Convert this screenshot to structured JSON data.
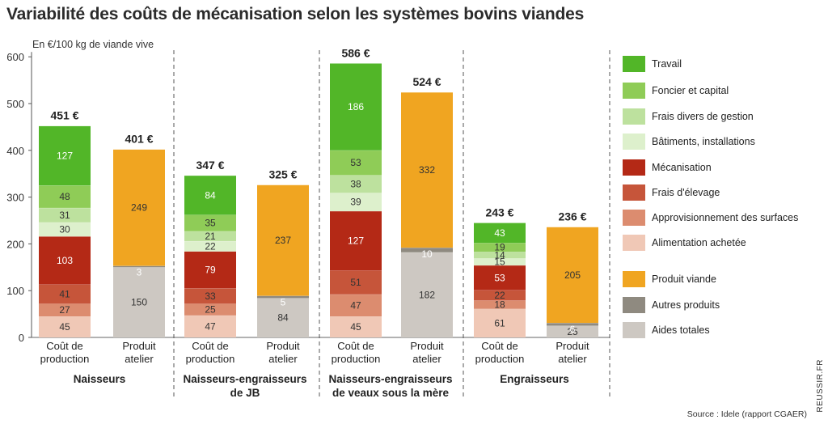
{
  "title": "Variabilité des coûts de mécanisation selon les systèmes bovins viandes",
  "unit_label": "En €/100 kg de viande vive",
  "source": "Source : Idele (rapport CGAER)",
  "site": "REUSSIR.FR",
  "colors": {
    "Travail": "#52b628",
    "Foncier et capital": "#8fcc57",
    "Frais divers de gestion": "#bde19e",
    "Bâtiments, installations": "#ddf0cc",
    "Mécanisation": "#b42916",
    "Frais d'élevage": "#c6553a",
    "Approvisionnement des surfaces": "#dc8c6f",
    "Alimentation achetée": "#f0c8b6",
    "Produit viande": "#f0a521",
    "Autres produits": "#8f8a80",
    "Aides totales": "#cdc8c2"
  },
  "chart_data": {
    "type": "bar",
    "stacked": true,
    "ylabel": "En €/100 kg de viande vive",
    "ylim": [
      0,
      600
    ],
    "yticks": [
      0,
      100,
      200,
      300,
      400,
      500,
      600
    ],
    "grid": false,
    "legend_position": "right",
    "legend": [
      "Travail",
      "Foncier et capital",
      "Frais divers de gestion",
      "Bâtiments, installations",
      "Mécanisation",
      "Frais d'élevage",
      "Approvisionnement des surfaces",
      "Alimentation achetée",
      "Produit viande",
      "Autres produits",
      "Aides totales"
    ],
    "groups": [
      {
        "name": "Naisseurs",
        "bars": [
          {
            "label": "Coût de production",
            "total": "451 €",
            "segments": [
              {
                "series": "Alimentation achetée",
                "value": 45
              },
              {
                "series": "Approvisionnement des surfaces",
                "value": 27
              },
              {
                "series": "Frais d'élevage",
                "value": 41
              },
              {
                "series": "Mécanisation",
                "value": 103
              },
              {
                "series": "Bâtiments, installations",
                "value": 30
              },
              {
                "series": "Frais divers de gestion",
                "value": 31
              },
              {
                "series": "Foncier et capital",
                "value": 48
              },
              {
                "series": "Travail",
                "value": 127
              }
            ]
          },
          {
            "label": "Produit atelier",
            "total": "401 €",
            "segments": [
              {
                "series": "Aides totales",
                "value": 150
              },
              {
                "series": "Autres produits",
                "value": 3
              },
              {
                "series": "Produit viande",
                "value": 249
              }
            ]
          }
        ]
      },
      {
        "name": "Naisseurs-engraisseurs de JB",
        "bars": [
          {
            "label": "Coût de production",
            "total": "347 €",
            "segments": [
              {
                "series": "Alimentation achetée",
                "value": 47
              },
              {
                "series": "Approvisionnement des surfaces",
                "value": 25
              },
              {
                "series": "Frais d'élevage",
                "value": 33
              },
              {
                "series": "Mécanisation",
                "value": 79
              },
              {
                "series": "Bâtiments, installations",
                "value": 22
              },
              {
                "series": "Frais divers de gestion",
                "value": 21
              },
              {
                "series": "Foncier et capital",
                "value": 35
              },
              {
                "series": "Travail",
                "value": 84
              }
            ]
          },
          {
            "label": "Produit atelier",
            "total": "325 €",
            "segments": [
              {
                "series": "Aides totales",
                "value": 84
              },
              {
                "series": "Autres produits",
                "value": 5
              },
              {
                "series": "Produit viande",
                "value": 237
              }
            ]
          }
        ]
      },
      {
        "name": "Naisseurs-engraisseurs de veaux sous la mère",
        "bars": [
          {
            "label": "Coût de production",
            "total": "586 €",
            "segments": [
              {
                "series": "Alimentation achetée",
                "value": 45
              },
              {
                "series": "Approvisionnement des surfaces",
                "value": 47
              },
              {
                "series": "Frais d'élevage",
                "value": 51
              },
              {
                "series": "Mécanisation",
                "value": 127
              },
              {
                "series": "Bâtiments, installations",
                "value": 39
              },
              {
                "series": "Frais divers de gestion",
                "value": 38
              },
              {
                "series": "Foncier et capital",
                "value": 53
              },
              {
                "series": "Travail",
                "value": 186
              }
            ]
          },
          {
            "label": "Produit atelier",
            "total": "524 €",
            "segments": [
              {
                "series": "Aides totales",
                "value": 182
              },
              {
                "series": "Autres produits",
                "value": 10
              },
              {
                "series": "Produit viande",
                "value": 332
              }
            ]
          }
        ]
      },
      {
        "name": "Engraisseurs",
        "bars": [
          {
            "label": "Coût de production",
            "total": "243 €",
            "segments": [
              {
                "series": "Alimentation achetée",
                "value": 61
              },
              {
                "series": "Approvisionnement des surfaces",
                "value": 18
              },
              {
                "series": "Frais d'élevage",
                "value": 22
              },
              {
                "series": "Mécanisation",
                "value": 53
              },
              {
                "series": "Bâtiments, installations",
                "value": 15
              },
              {
                "series": "Frais divers de gestion",
                "value": 14
              },
              {
                "series": "Foncier et capital",
                "value": 19
              },
              {
                "series": "Travail",
                "value": 43
              }
            ]
          },
          {
            "label": "Produit atelier",
            "total": "236 €",
            "segments": [
              {
                "series": "Aides totales",
                "value": 25
              },
              {
                "series": "Autres produits",
                "value": 6
              },
              {
                "series": "Produit viande",
                "value": 205
              }
            ]
          }
        ]
      }
    ]
  }
}
